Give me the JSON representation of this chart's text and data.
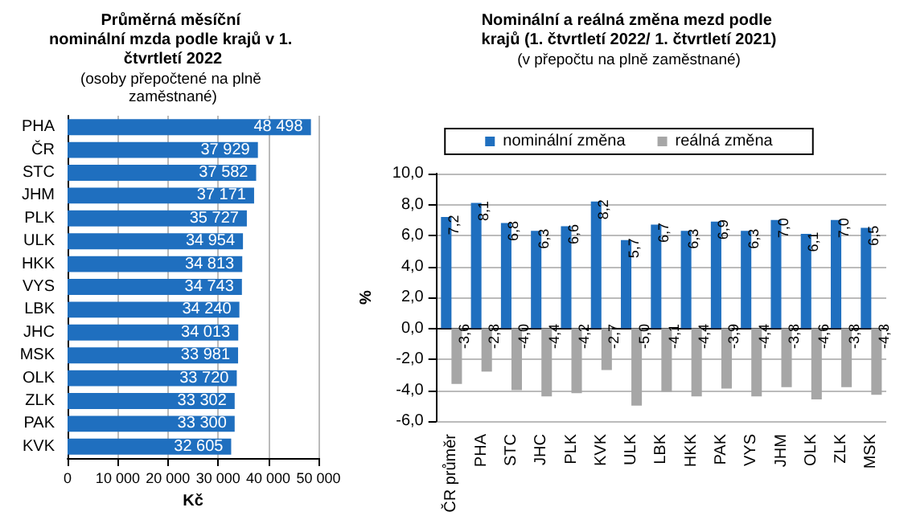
{
  "chart_data": [
    {
      "type": "bar",
      "orientation": "horizontal",
      "title": "Průměrná měsíční nominální mzda podle krajů v 1. čtvrtletí 2022",
      "subtitle": "(osoby přepočtené na plně zaměstnané)",
      "xlabel": "Kč",
      "categories": [
        "PHA",
        "ČR",
        "STC",
        "JHM",
        "PLK",
        "ULK",
        "HKK",
        "VYS",
        "LBK",
        "JHC",
        "MSK",
        "OLK",
        "ZLK",
        "PAK",
        "KVK"
      ],
      "values": [
        48498,
        37929,
        37582,
        37171,
        35727,
        34954,
        34813,
        34743,
        34240,
        34013,
        33981,
        33720,
        33302,
        33300,
        32605
      ],
      "value_labels": [
        "48 498",
        "37 929",
        "37 582",
        "37 171",
        "35 727",
        "34 954",
        "34 813",
        "34 743",
        "34 240",
        "34 013",
        "33 981",
        "33 720",
        "33 302",
        "33 300",
        "32 605"
      ],
      "color": "#1f6fbf",
      "xlim": [
        0,
        50000
      ],
      "xticks": [
        0,
        {
          "value": 10000,
          "label": "10 000"
        },
        {
          "value": 20000,
          "label": "20 000"
        },
        {
          "value": 30000,
          "label": "30 000"
        },
        {
          "value": 40000,
          "label": "40 000"
        },
        {
          "value": 50000,
          "label": "50 000"
        }
      ],
      "grid": "x",
      "legend": false
    },
    {
      "type": "bar",
      "title": "Nominální a reálná změna mezd podle krajů (1. čtvrtletí 2022/ 1. čtvrtletí 2021)",
      "subtitle": "(v přepočtu na plně zaměstnané)",
      "ylabel": "%",
      "categories": [
        "ČR průměr",
        "PHA",
        "STC",
        "JHC",
        "PLK",
        "KVK",
        "ULK",
        "LBK",
        "HKK",
        "PAK",
        "VYS",
        "JHM",
        "OLK",
        "ZLK",
        "MSK"
      ],
      "series": [
        {
          "name": "nominální změna",
          "color": "#1f6fbf",
          "values": [
            7.2,
            8.1,
            6.8,
            6.3,
            6.6,
            8.2,
            5.7,
            6.7,
            6.3,
            6.9,
            6.3,
            7.0,
            6.1,
            7.0,
            6.5
          ],
          "value_labels": [
            "7,2",
            "8,1",
            "6,8",
            "6,3",
            "6,6",
            "8,2",
            "5,7",
            "6,7",
            "6,3",
            "6,9",
            "6,3",
            "7,0",
            "6,1",
            "7,0",
            "6,5"
          ]
        },
        {
          "name": "reálná změna",
          "color": "#a6a6a6",
          "values": [
            -3.6,
            -2.8,
            -4.0,
            -4.4,
            -4.2,
            -2.7,
            -5.0,
            -4.1,
            -4.4,
            -3.9,
            -4.4,
            -3.8,
            -4.6,
            -3.8,
            -4.3
          ],
          "value_labels": [
            "-3,6",
            "-2,8",
            "-4,0",
            "-4,4",
            "-4,2",
            "-2,7",
            "-5,0",
            "-4,1",
            "-4,4",
            "-3,9",
            "-4,4",
            "-3,8",
            "-4,6",
            "-3,8",
            "-4,3"
          ]
        }
      ],
      "ylim": [
        -6,
        10
      ],
      "yticks": [
        {
          "value": -6,
          "label": "-6,0"
        },
        {
          "value": -4,
          "label": "-4,0"
        },
        {
          "value": -2,
          "label": "-2,0"
        },
        {
          "value": 0,
          "label": "0,0"
        },
        {
          "value": 2,
          "label": "2,0"
        },
        {
          "value": 4,
          "label": "4,0"
        },
        {
          "value": 6,
          "label": "6,0"
        },
        {
          "value": 8,
          "label": "8,0"
        },
        {
          "value": 10,
          "label": "10,0"
        }
      ],
      "grid": "y",
      "legend": "top"
    }
  ]
}
